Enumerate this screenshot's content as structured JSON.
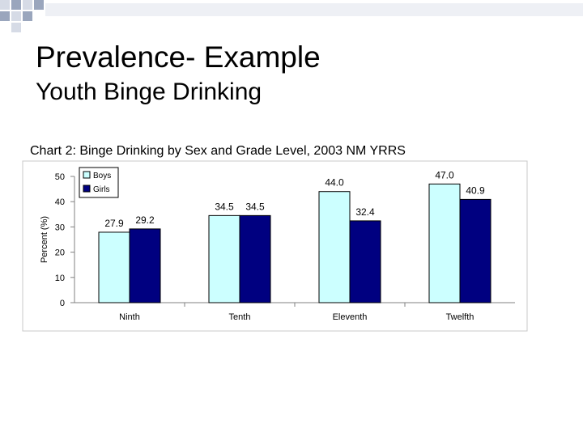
{
  "slide": {
    "title": "Prevalence- Example",
    "subtitle": "Youth Binge Drinking"
  },
  "chart_data": {
    "type": "bar",
    "title": "Chart 2: Binge Drinking by Sex and Grade Level, 2003 NM YRRS",
    "xlabel": "",
    "ylabel": "Percent (%)",
    "ylim": [
      0,
      50
    ],
    "yticks": [
      0,
      10,
      20,
      30,
      40,
      50
    ],
    "grid": false,
    "legend": "top-left",
    "categories": [
      "Ninth",
      "Tenth",
      "Eleventh",
      "Twelfth"
    ],
    "series": [
      {
        "name": "Boys",
        "values": [
          27.9,
          34.5,
          44.0,
          47.0
        ],
        "color": "#ccffff"
      },
      {
        "name": "Girls",
        "values": [
          29.2,
          34.5,
          32.4,
          40.9
        ],
        "color": "#000080"
      }
    ],
    "data_labels": [
      [
        "27.9",
        "34.5",
        "44.0",
        "47.0"
      ],
      [
        "29.2",
        "34.5",
        "32.4",
        "40.9"
      ]
    ]
  },
  "colors": {
    "decoration_light": "#d6dbe6",
    "decoration_dark": "#9aa6bd"
  }
}
